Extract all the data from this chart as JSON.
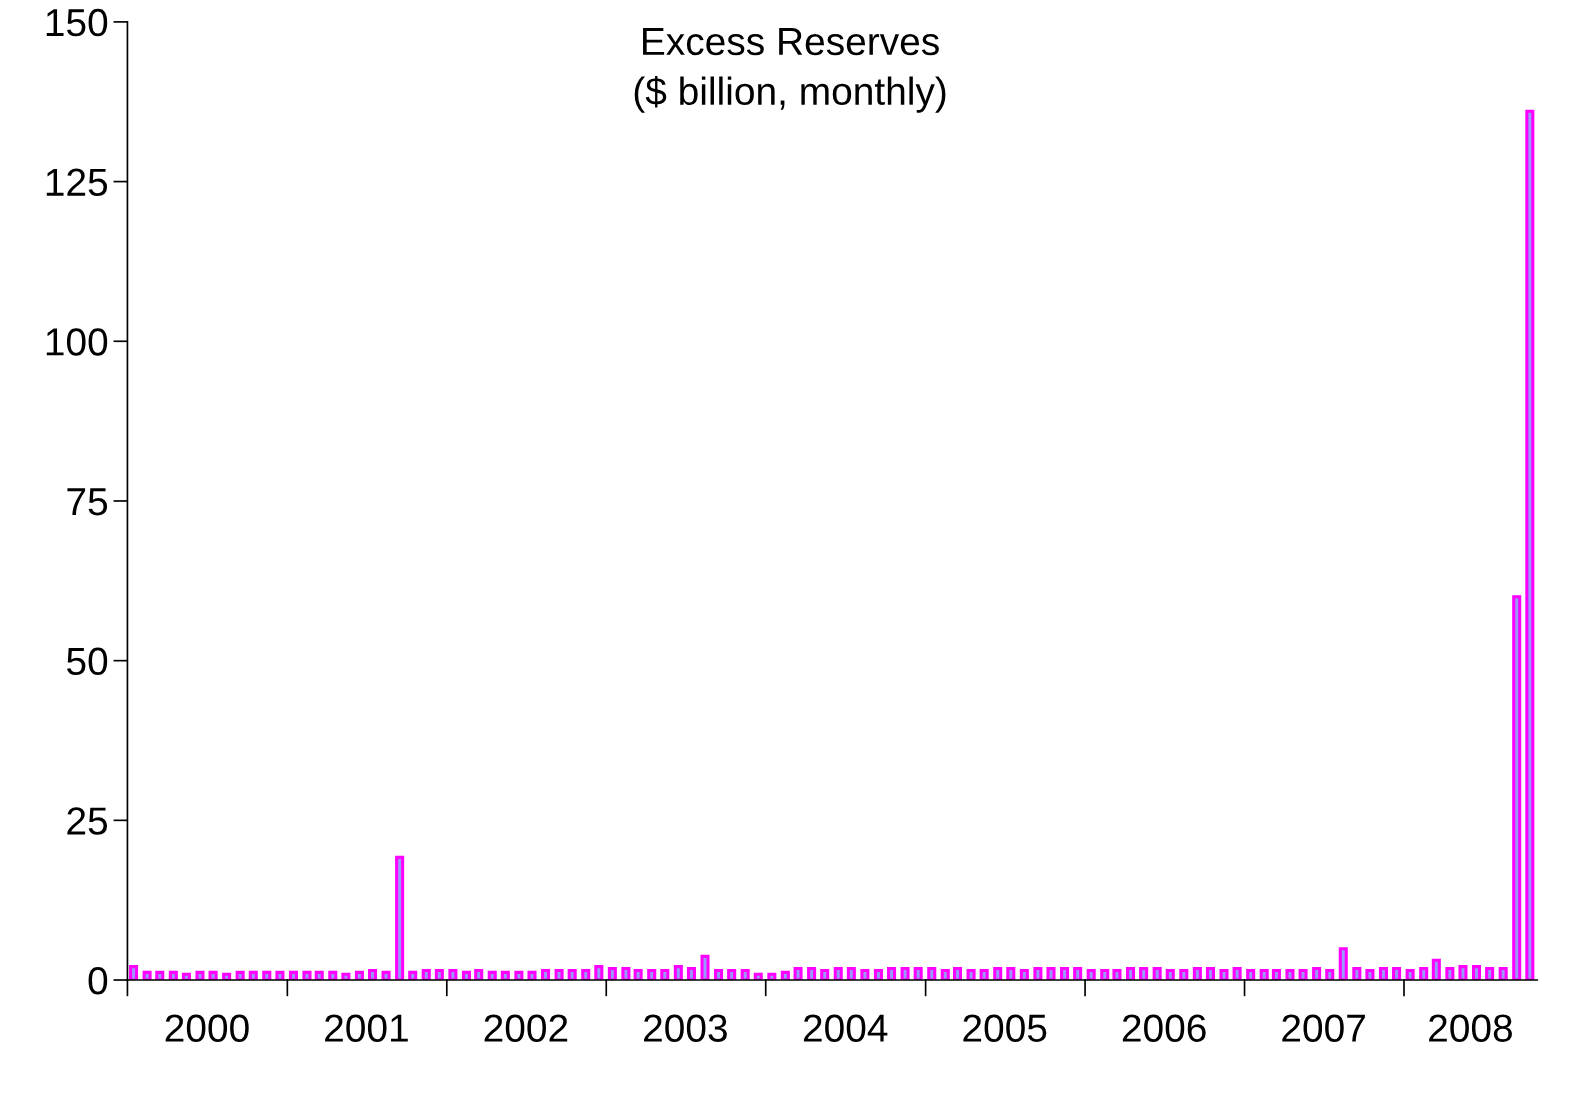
{
  "chart_data": {
    "type": "bar",
    "title": "Excess Reserves\n($ billion, monthly)",
    "x": [
      "2000-01-15",
      "2000-02-15",
      "2000-03-15",
      "2000-04-15",
      "2000-05-15",
      "2000-06-15",
      "2000-07-15",
      "2000-08-15",
      "2000-09-15",
      "2000-10-15",
      "2000-11-15",
      "2000-12-15",
      "2001-01-15",
      "2001-02-15",
      "2001-03-15",
      "2001-04-15",
      "2001-05-15",
      "2001-06-15",
      "2001-07-15",
      "2001-08-15",
      "2001-09-15",
      "2001-10-15",
      "2001-11-15",
      "2001-12-15",
      "2002-01-15",
      "2002-02-15",
      "2002-03-15",
      "2002-04-15",
      "2002-05-15",
      "2002-06-15",
      "2002-07-15",
      "2002-08-15",
      "2002-09-15",
      "2002-10-15",
      "2002-11-15",
      "2002-12-15",
      "2003-01-15",
      "2003-02-15",
      "2003-03-15",
      "2003-04-15",
      "2003-05-15",
      "2003-06-15",
      "2003-07-15",
      "2003-08-15",
      "2003-09-15",
      "2003-10-15",
      "2003-11-15",
      "2003-12-15",
      "2004-01-15",
      "2004-02-15",
      "2004-03-15",
      "2004-04-15",
      "2004-05-15",
      "2004-06-15",
      "2004-07-15",
      "2004-08-15",
      "2004-09-15",
      "2004-10-15",
      "2004-11-15",
      "2004-12-15",
      "2005-01-15",
      "2005-02-15",
      "2005-03-15",
      "2005-04-15",
      "2005-05-15",
      "2005-06-15",
      "2005-07-15",
      "2005-08-15",
      "2005-09-15",
      "2005-10-15",
      "2005-11-15",
      "2005-12-15",
      "2006-01-15",
      "2006-02-15",
      "2006-03-15",
      "2006-04-15",
      "2006-05-15",
      "2006-06-15",
      "2006-07-15",
      "2006-08-15",
      "2006-09-15",
      "2006-10-15",
      "2006-11-15",
      "2006-12-15",
      "2007-01-15",
      "2007-02-15",
      "2007-03-15",
      "2007-04-15",
      "2007-05-15",
      "2007-06-15",
      "2007-07-15",
      "2007-08-15",
      "2007-09-15",
      "2007-10-15",
      "2007-11-15",
      "2007-12-15",
      "2008-01-15",
      "2008-02-15",
      "2008-03-15",
      "2008-04-15",
      "2008-05-15",
      "2008-06-15",
      "2008-07-15",
      "2008-08-15",
      "2008-09-15",
      "2008-10-15"
    ],
    "values": [
      2.1,
      1.2,
      1.2,
      1.2,
      0.9,
      1.2,
      1.2,
      0.9,
      1.2,
      1.2,
      1.2,
      1.2,
      1.2,
      1.2,
      1.2,
      1.2,
      0.9,
      1.2,
      1.5,
      1.2,
      19.2,
      1.2,
      1.5,
      1.5,
      1.5,
      1.2,
      1.5,
      1.2,
      1.2,
      1.2,
      1.2,
      1.5,
      1.5,
      1.5,
      1.5,
      2.1,
      1.8,
      1.8,
      1.5,
      1.5,
      1.5,
      2.1,
      1.8,
      3.7,
      1.5,
      1.5,
      1.5,
      0.9,
      0.9,
      1.2,
      1.8,
      1.8,
      1.5,
      1.8,
      1.8,
      1.5,
      1.5,
      1.8,
      1.8,
      1.8,
      1.8,
      1.5,
      1.8,
      1.5,
      1.5,
      1.8,
      1.8,
      1.5,
      1.8,
      1.8,
      1.8,
      1.8,
      1.5,
      1.5,
      1.5,
      1.8,
      1.8,
      1.8,
      1.5,
      1.5,
      1.8,
      1.8,
      1.5,
      1.8,
      1.5,
      1.5,
      1.5,
      1.5,
      1.5,
      1.8,
      1.5,
      4.9,
      1.8,
      1.5,
      1.8,
      1.8,
      1.5,
      1.8,
      3.1,
      1.8,
      2.1,
      2.1,
      1.8,
      1.8,
      60,
      136
    ],
    "color": "#ff00ff",
    "xlim": [
      "2000-01-01",
      "2008-11-01"
    ],
    "xticks": [
      {
        "value": "2000-01-01",
        "label": null
      },
      {
        "value": "2000-07-01",
        "label": "2000"
      },
      {
        "value": "2001-01-01",
        "label": null
      },
      {
        "value": "2001-07-01",
        "label": "2001"
      },
      {
        "value": "2002-01-01",
        "label": null
      },
      {
        "value": "2002-07-01",
        "label": "2002"
      },
      {
        "value": "2003-01-01",
        "label": null
      },
      {
        "value": "2003-07-01",
        "label": "2003"
      },
      {
        "value": "2004-01-01",
        "label": null
      },
      {
        "value": "2004-07-01",
        "label": "2004"
      },
      {
        "value": "2005-01-01",
        "label": null
      },
      {
        "value": "2005-07-01",
        "label": "2005"
      },
      {
        "value": "2006-01-01",
        "label": null
      },
      {
        "value": "2006-07-01",
        "label": "2006"
      },
      {
        "value": "2007-01-01",
        "label": null
      },
      {
        "value": "2007-07-01",
        "label": "2007"
      },
      {
        "value": "2008-01-01",
        "label": null
      },
      {
        "value": "2008-06-01",
        "label": "2008"
      }
    ],
    "ylim": [
      0,
      150
    ],
    "yticks": [
      0,
      25,
      50,
      75,
      100,
      125,
      150
    ],
    "grid": false,
    "legend": false
  }
}
